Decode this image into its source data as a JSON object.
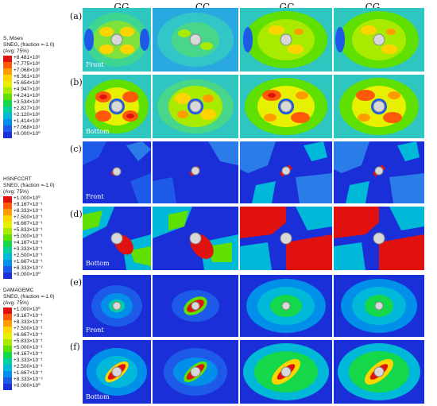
{
  "columns": [
    "GG",
    "CC",
    "GC",
    "CG"
  ],
  "row_labels": [
    "(a)",
    "(b)",
    "(c)",
    "(d)",
    "(e)",
    "(f)"
  ],
  "view_labels": {
    "front": "Front",
    "bottom": "Bottom"
  },
  "legends": [
    {
      "title_lines": [
        "S, Mises",
        "SNEG, (fraction =-1.0)",
        "(Avg: 75%)"
      ],
      "values": [
        "+8.481×10²",
        "+7.775×10²",
        "+7.068×10²",
        "+6.361×10²",
        "+5.654×10²",
        "+4.947×10²",
        "+4.241×10²",
        "+3.534×10²",
        "+2.827×10²",
        "+2.120×10²",
        "+1.414×10²",
        "+7.068×10¹",
        "+0.000×10⁰"
      ]
    },
    {
      "title_lines": [
        "HSNFCCRT",
        "SNEG, (fraction =-1.0)",
        "(Avg: 75%)"
      ],
      "values": [
        "+1.000×10⁰",
        "+9.167×10⁻¹",
        "+8.333×10⁻¹",
        "+7.500×10⁻¹",
        "+6.667×10⁻¹",
        "+5.833×10⁻¹",
        "+5.000×10⁻¹",
        "+4.167×10⁻¹",
        "+3.333×10⁻¹",
        "+2.500×10⁻¹",
        "+1.667×10⁻¹",
        "+8.333×10⁻²",
        "+0.000×10⁰"
      ]
    },
    {
      "title_lines": [
        "DAMAGEMC",
        "SNEG, (fraction =-1.0)",
        "(Avg: 75%)"
      ],
      "values": [
        "+1.000×10⁰",
        "+9.167×10⁻¹",
        "+8.333×10⁻¹",
        "+7.500×10⁻¹",
        "+6.667×10⁻¹",
        "+5.833×10⁻¹",
        "+5.000×10⁻¹",
        "+4.167×10⁻¹",
        "+3.333×10⁻¹",
        "+2.500×10⁻¹",
        "+1.667×10⁻¹",
        "+8.333×10⁻²",
        "+0.000×10⁰"
      ]
    }
  ],
  "scale_colors": [
    "#e0110f",
    "#ff5a0a",
    "#ff9d00",
    "#ffd400",
    "#e6f000",
    "#a8ea00",
    "#5fe000",
    "#14d84a",
    "#00d29e",
    "#00b8d8",
    "#0090ea",
    "#1d5ae8",
    "#1b2fd8"
  ]
}
